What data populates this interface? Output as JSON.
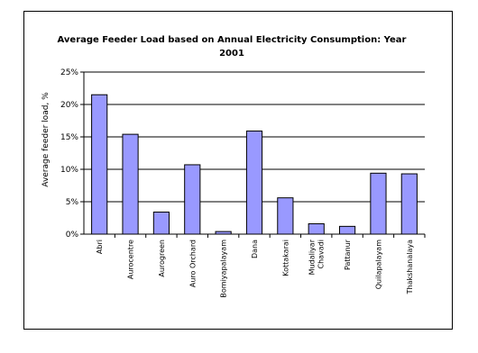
{
  "chart_data": {
    "type": "bar",
    "title_lines": [
      "Average Feeder Load based on Annual Electricity Consumption: Year",
      "2001"
    ],
    "ylabel": "Average feeder load, %",
    "xlabel": "",
    "ylim": [
      0,
      25
    ],
    "yticks": [
      "0%",
      "5%",
      "10%",
      "15%",
      "20%",
      "25%"
    ],
    "ytick_values": [
      0,
      5,
      10,
      15,
      20,
      25
    ],
    "grid": true,
    "bar_color": "#9999ff",
    "categories": [
      [
        "Abri"
      ],
      [
        "Aurocentre"
      ],
      [
        "Aurogreen"
      ],
      [
        "Auro Orchard"
      ],
      [
        "Bomiyapalayam"
      ],
      [
        "Dana"
      ],
      [
        "Kottakarai"
      ],
      [
        "Mudaliyar",
        "Chavadi"
      ],
      [
        "Pattanur"
      ],
      [
        "Quilapalayam"
      ],
      [
        "Thakshanalaya"
      ]
    ],
    "values": [
      21.5,
      15.4,
      3.4,
      10.7,
      0.4,
      15.9,
      5.6,
      1.6,
      1.2,
      9.4,
      9.3
    ]
  }
}
